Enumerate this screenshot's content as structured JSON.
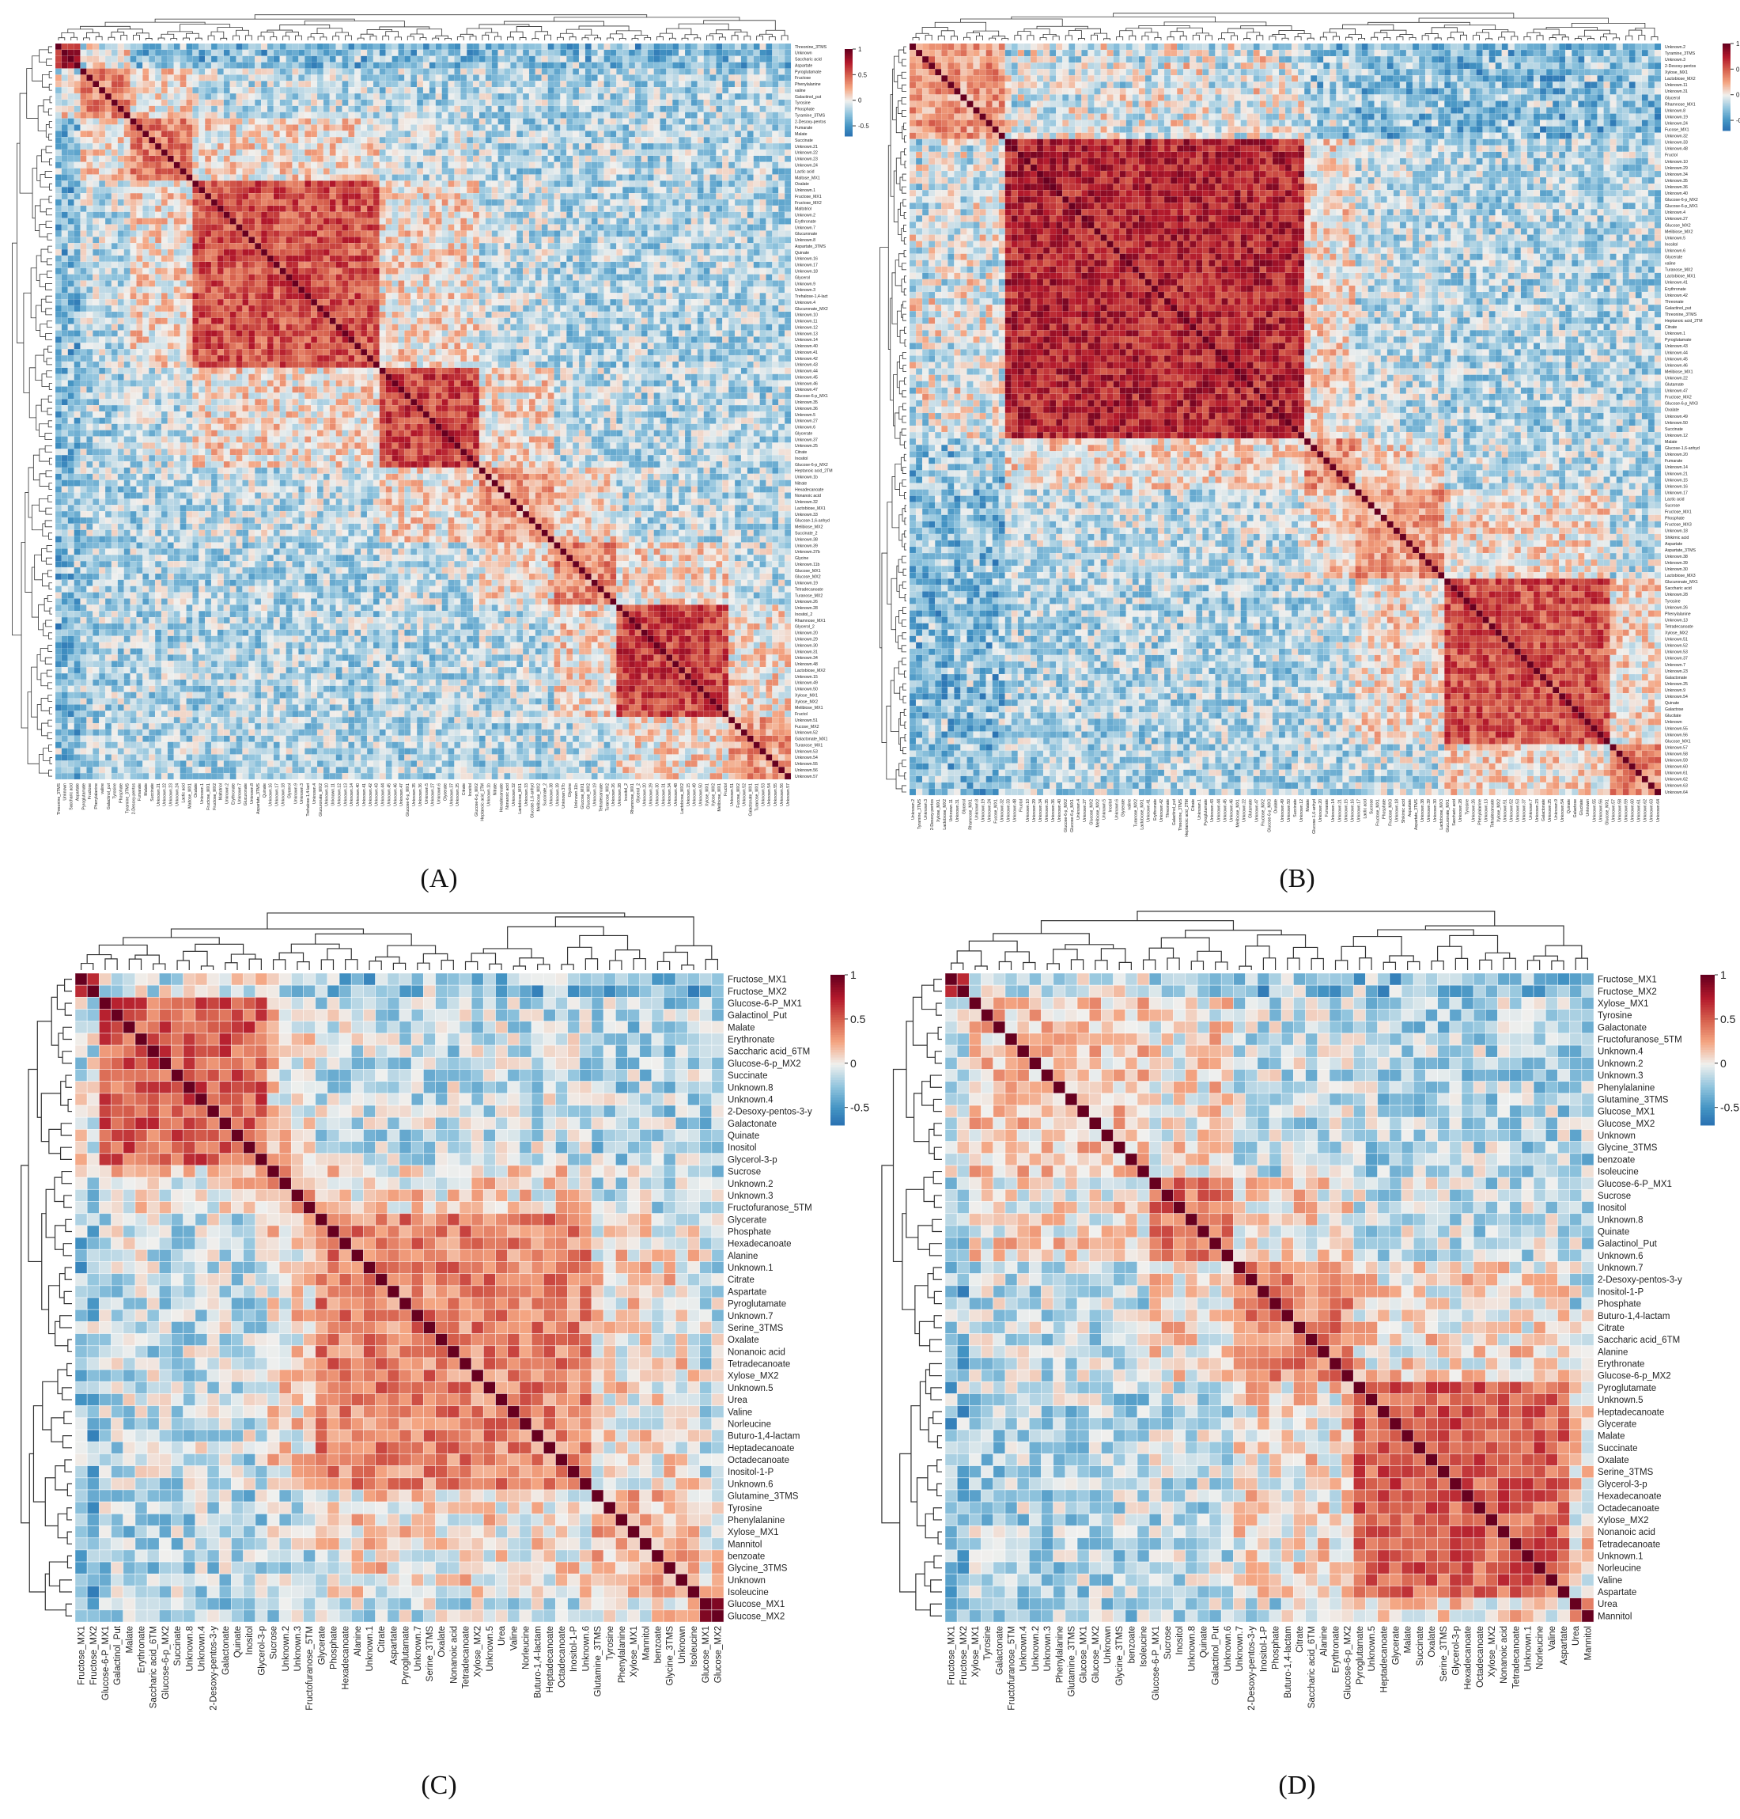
{
  "panels": [
    {
      "id": "A",
      "caption": "(A)",
      "size": 118,
      "seed": 11,
      "colorbar_ticks": [
        "1",
        "0.5",
        "0",
        "-0.5"
      ],
      "labels": [
        "Threonine_3TMS",
        "Unknown",
        "Saccharic acid",
        "Aspartate",
        "Pyroglutamate",
        "Fructose",
        "Phenylalanine",
        "valine",
        "Galactinol_put",
        "Tyrosine",
        "Phosphate",
        "Tyramine_3TMS",
        "2-Desoxy-pentos",
        "Fumarate",
        "Malate",
        "Succinate",
        "Unknown.21",
        "Unknown.22",
        "Unknown.23",
        "Unknown.24",
        "Lactic acid",
        "Maltose_MX1",
        "Oxalate",
        "Unknown.1",
        "Fructose_MX1",
        "Fructose_MX2",
        "Maltotriol",
        "Unknown.2",
        "Erythronate",
        "Unknown.7",
        "Glucuronate",
        "Unknown.8",
        "Aspartate_3TMS",
        "Quinate",
        "Unknown.16",
        "Unknown.17",
        "Unknown.18",
        "Glycerol",
        "Unknown.9",
        "Unknown.3",
        "Trehalose-1,4-lact",
        "Unknown.4",
        "Glucuronate_MX2",
        "Unknown.10",
        "Unknown.11",
        "Unknown.12",
        "Unknown.13",
        "Unknown.14",
        "Unknown.40",
        "Unknown.41",
        "Unknown.42",
        "Unknown.43",
        "Unknown.44",
        "Unknown.45",
        "Unknown.46",
        "Unknown.47",
        "Glucose-6-p_MX1",
        "Unknown.35",
        "Unknown.36",
        "Unknown.5",
        "Unknown.27",
        "Unknown.6",
        "Glycerate",
        "Unknown.37",
        "Unknown.25",
        "Citrate",
        "Inositol",
        "Glucose-6-p_MX2",
        "Heptanoic acid_2TM",
        "Unknown.1b",
        "Nitrate",
        "Hexadecanoate",
        "Nonanoic acid",
        "Unknown.32",
        "Lactobiose_MX1",
        "Unknown.33",
        "Glucose-1,6-anhyd",
        "Melibiose_MX2",
        "Succinate_2",
        "Unknown.38",
        "Unknown.39",
        "Unknown.37b",
        "Glycine",
        "Unknown.11b",
        "Glucose_MX1",
        "Glucose_MX2",
        "Unknown.19",
        "Tetradecanoate",
        "Turanose_MX2",
        "Unknown.26",
        "Unknown.28",
        "Inositol_2",
        "Rhamnose_MX1",
        "Glycerol_2",
        "Unknown.20",
        "Unknown.29",
        "Unknown.30",
        "Unknown.31",
        "Unknown.34",
        "Unknown.48",
        "Lactobiose_MX2",
        "Unknown.15",
        "Unknown.49",
        "Unknown.50",
        "Xylose_MX1",
        "Xylose_MX2",
        "Melibiose_MX1",
        "Fructol",
        "Unknown.51",
        "Fucose_MX2",
        "Unknown.52",
        "Galactonate_MX1",
        "Turanose_MX1",
        "Unknown.53",
        "Unknown.54",
        "Unknown.55",
        "Unknown.56",
        "Unknown.57"
      ],
      "blocks": [
        [
          0,
          4,
          0.7
        ],
        [
          4,
          12,
          0.35
        ],
        [
          12,
          22,
          0.4
        ],
        [
          22,
          52,
          0.55
        ],
        [
          52,
          68,
          0.6
        ],
        [
          68,
          80,
          0.3
        ],
        [
          80,
          90,
          0.35
        ],
        [
          90,
          108,
          0.6
        ],
        [
          108,
          118,
          0.3
        ]
      ]
    },
    {
      "id": "B",
      "caption": "(B)",
      "size": 118,
      "seed": 23,
      "colorbar_ticks": [
        "1",
        "0.5",
        "0",
        "-0.5"
      ],
      "labels": [
        "Unknown.2",
        "Tyramine_3TMS",
        "Unknown.3",
        "2-Desoxy-pentos",
        "Xylose_MX1",
        "Lactobiose_MX2",
        "Unknown.11",
        "Unknown.31",
        "Glycerol",
        "Rhamnose_MX1",
        "Unknown.8",
        "Unknown.19",
        "Unknown.24",
        "Fucose_MX1",
        "Unknown.32",
        "Unknown.33",
        "Unknown.48",
        "Fructol",
        "Unknown.10",
        "Unknown.29",
        "Unknown.34",
        "Unknown.35",
        "Unknown.36",
        "Unknown.40",
        "Glucose-6-p_MX2",
        "Glucose-6-p_MX1",
        "Unknown.4",
        "Unknown.27",
        "Glucose_MX2",
        "Melibiose_MX2",
        "Unknown.5",
        "Inositol",
        "Unknown.6",
        "Glycerate",
        "valine",
        "Turanose_MX2",
        "Lactobiose_MX1",
        "Unknown.41",
        "Erythronate",
        "Unknown.42",
        "Threonate",
        "Galactinol_put",
        "Threonine_3TMS",
        "Heptanoic acid_2TM",
        "Citrate",
        "Unknown.1",
        "Pyroglutamate",
        "Unknown.43",
        "Unknown.44",
        "Unknown.45",
        "Unknown.46",
        "Melibiose_MX1",
        "Unknown.22",
        "Glutamate",
        "Unknown.47",
        "Fructose_MX2",
        "Glucose-6-p_MX3",
        "Oxalate",
        "Unknown.49",
        "Unknown.50",
        "Succinate",
        "Unknown.12",
        "Malate",
        "Glucose-1,6-anhyd",
        "Unknown.20",
        "Fumarate",
        "Unknown.14",
        "Unknown.21",
        "Unknown.15",
        "Unknown.16",
        "Unknown.17",
        "Lactic acid",
        "Sucrose",
        "Fructose_MX1",
        "Phosphate",
        "Fructose_MX3",
        "Unknown.18",
        "Shikimic acid",
        "Aspartate",
        "Aspartate_3TMS",
        "Unknown.38",
        "Unknown.39",
        "Unknown.30",
        "Lactobiose_MX3",
        "Glucuronate_MX1",
        "Saccharic acid",
        "Unknown.28",
        "Tyrosine",
        "Unknown.26",
        "Phenylalanine",
        "Unknown.13",
        "Tetradecanoate",
        "Xylose_MX2",
        "Unknown.51",
        "Unknown.52",
        "Unknown.53",
        "Unknown.37",
        "Unknown.7",
        "Unknown.23",
        "Galactonate",
        "Unknown.25",
        "Unknown.9",
        "Unknown.54",
        "Quinate",
        "Galactose",
        "Glucitate",
        "Unknown",
        "Unknown.55",
        "Unknown.56",
        "Glucose_MX1",
        "Unknown.57",
        "Unknown.58",
        "Unknown.59",
        "Unknown.60",
        "Unknown.61",
        "Unknown.62",
        "Unknown.63",
        "Unknown.64"
      ],
      "blocks": [
        [
          0,
          15,
          0.3
        ],
        [
          15,
          62,
          0.72
        ],
        [
          62,
          70,
          0.35
        ],
        [
          70,
          84,
          0.3
        ],
        [
          84,
          110,
          0.55
        ],
        [
          110,
          118,
          0.35
        ]
      ]
    },
    {
      "id": "C",
      "caption": "(C)",
      "size": 54,
      "seed": 37,
      "colorbar_ticks": [
        "1",
        "0.5",
        "0",
        "-0.5"
      ],
      "labels": [
        "Fructose_MX1",
        "Fructose_MX2",
        "Glucose-6-P_MX1",
        "Galactinol_Put",
        "Malate",
        "Erythronate",
        "Saccharic acid_6TM",
        "Glucose-6-p_MX2",
        "Succinate",
        "Unknown.8",
        "Unknown.4",
        "2-Desoxy-pentos-3-y",
        "Galactonate",
        "Quinate",
        "Inositol",
        "Glycerol-3-p",
        "Sucrose",
        "Unknown.2",
        "Unknown.3",
        "Fructofuranose_5TM",
        "Glycerate",
        "Phosphate",
        "Hexadecanoate",
        "Alanine",
        "Unknown.1",
        "Citrate",
        "Aspartate",
        "Pyroglutamate",
        "Unknown.7",
        "Serine_3TMS",
        "Oxalate",
        "Nonanoic acid",
        "Tetradecanoate",
        "Xylose_MX2",
        "Unknown.5",
        "Urea",
        "Valine",
        "Norleucine",
        "Buturo-1,4-lactam",
        "Heptadecanoate",
        "Octadecanoate",
        "Inositol-1-P",
        "Unknown.6",
        "Glutamine_3TMS",
        "Tyrosine",
        "Phenylalanine",
        "Xylose_MX1",
        "Mannitol",
        "benzoate",
        "Glycine_3TMS",
        "Unknown",
        "Isoleucine",
        "Glucose_MX1",
        "Glucose_MX2"
      ],
      "blocks": [
        [
          0,
          2,
          0.8
        ],
        [
          2,
          16,
          0.5
        ],
        [
          16,
          20,
          0.2
        ],
        [
          20,
          43,
          0.38
        ],
        [
          43,
          52,
          0.2
        ],
        [
          52,
          54,
          0.8
        ]
      ]
    },
    {
      "id": "D",
      "caption": "(D)",
      "size": 54,
      "seed": 53,
      "colorbar_ticks": [
        "1",
        "0.5",
        "0",
        "-0.5"
      ],
      "labels": [
        "Fructose_MX1",
        "Fructose_MX2",
        "Xylose_MX1",
        "Tyrosine",
        "Galactonate",
        "Fructofuranose_5TM",
        "Unknown.4",
        "Unknown.2",
        "Unknown.3",
        "Phenylalanine",
        "Glutamine_3TMS",
        "Glucose_MX1",
        "Glucose_MX2",
        "Unknown",
        "Glycine_3TMS",
        "benzoate",
        "Isoleucine",
        "Glucose-6-P_MX1",
        "Sucrose",
        "Inositol",
        "Unknown.8",
        "Quinate",
        "Galactinol_Put",
        "Unknown.6",
        "Unknown.7",
        "2-Desoxy-pentos-3-y",
        "Inositol-1-P",
        "Phosphate",
        "Buturo-1,4-lactam",
        "Citrate",
        "Saccharic acid_6TM",
        "Alanine",
        "Erythronate",
        "Glucose-6-p_MX2",
        "Pyroglutamate",
        "Unknown.5",
        "Heptadecanoate",
        "Glycerate",
        "Malate",
        "Succinate",
        "Oxalate",
        "Serine_3TMS",
        "Glycerol-3-p",
        "Hexadecanoate",
        "Octadecanoate",
        "Xylose_MX2",
        "Nonanoic acid",
        "Tetradecanoate",
        "Unknown.1",
        "Norleucine",
        "Valine",
        "Aspartate",
        "Urea",
        "Mannitol"
      ],
      "blocks": [
        [
          0,
          2,
          0.8
        ],
        [
          2,
          17,
          0.15
        ],
        [
          17,
          24,
          0.45
        ],
        [
          24,
          34,
          0.35
        ],
        [
          34,
          52,
          0.5
        ],
        [
          52,
          54,
          0.3
        ]
      ]
    }
  ]
}
